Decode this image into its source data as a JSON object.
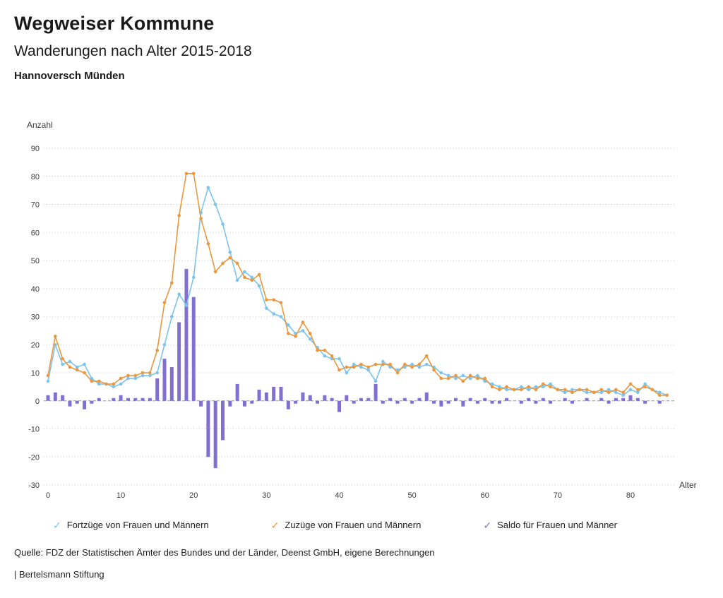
{
  "header": {
    "title": "Wegweiser Kommune",
    "subtitle": "Wanderungen nach Alter 2015-2018",
    "region": "Hannoversch Münden"
  },
  "chart_data": {
    "type": "line",
    "title": "Wanderungen nach Alter 2015-2018",
    "y_axis_label": "Anzahl",
    "x_axis_label": "Alter",
    "ylim": [
      -30,
      90
    ],
    "ytick_step": 10,
    "xlim": [
      0,
      86
    ],
    "xticks": [
      0,
      10,
      20,
      30,
      40,
      50,
      60,
      70,
      80
    ],
    "grid": true,
    "legend_position": "bottom",
    "x": [
      0,
      1,
      2,
      3,
      4,
      5,
      6,
      7,
      8,
      9,
      10,
      11,
      12,
      13,
      14,
      15,
      16,
      17,
      18,
      19,
      20,
      21,
      22,
      23,
      24,
      25,
      26,
      27,
      28,
      29,
      30,
      31,
      32,
      33,
      34,
      35,
      36,
      37,
      38,
      39,
      40,
      41,
      42,
      43,
      44,
      45,
      46,
      47,
      48,
      49,
      50,
      51,
      52,
      53,
      54,
      55,
      56,
      57,
      58,
      59,
      60,
      61,
      62,
      63,
      64,
      65,
      66,
      67,
      68,
      69,
      70,
      71,
      72,
      73,
      74,
      75,
      76,
      77,
      78,
      79,
      80,
      81,
      82,
      83,
      84,
      85
    ],
    "series": [
      {
        "name": "Fortzüge von Frauen und Männern",
        "type": "line",
        "color": "#7cc4ec",
        "values": [
          7,
          20,
          13,
          14,
          12,
          13,
          8,
          6,
          6,
          5,
          6,
          8,
          8,
          9,
          9,
          10,
          20,
          30,
          38,
          34,
          44,
          67,
          76,
          70,
          63,
          53,
          43,
          46,
          44,
          41,
          33,
          31,
          30,
          27,
          24,
          25,
          22,
          19,
          16,
          15,
          15,
          10,
          13,
          12,
          11,
          7,
          14,
          12,
          11,
          12,
          13,
          12,
          13,
          12,
          10,
          9,
          8,
          9,
          8,
          9,
          7,
          6,
          5,
          4,
          4,
          5,
          4,
          5,
          5,
          6,
          4,
          3,
          4,
          4,
          3,
          3,
          3,
          4,
          3,
          2,
          4,
          3,
          6,
          4,
          3,
          2
        ]
      },
      {
        "name": "Zuzüge von Frauen und Männern",
        "type": "line",
        "color": "#ea973e",
        "values": [
          9,
          23,
          15,
          12,
          11,
          10,
          7,
          7,
          6,
          6,
          8,
          9,
          9,
          10,
          10,
          18,
          35,
          42,
          66,
          81,
          81,
          65,
          56,
          46,
          49,
          51,
          49,
          44,
          43,
          45,
          36,
          36,
          35,
          24,
          23,
          28,
          24,
          18,
          18,
          16,
          11,
          12,
          12,
          13,
          12,
          13,
          13,
          13,
          10,
          13,
          12,
          13,
          16,
          11,
          8,
          8,
          9,
          7,
          9,
          8,
          8,
          5,
          4,
          5,
          4,
          4,
          5,
          4,
          6,
          5,
          4,
          4,
          3,
          4,
          4,
          3,
          4,
          3,
          4,
          3,
          6,
          4,
          5,
          4,
          2,
          2
        ]
      },
      {
        "name": "Saldo für Frauen und Männer",
        "type": "bar",
        "color": "#8170d0",
        "values": [
          2,
          3,
          2,
          -2,
          -1,
          -3,
          -1,
          1,
          0,
          1,
          2,
          1,
          1,
          1,
          1,
          8,
          15,
          12,
          28,
          47,
          37,
          -2,
          -20,
          -24,
          -14,
          -2,
          6,
          -2,
          -1,
          4,
          3,
          5,
          5,
          -3,
          -1,
          3,
          2,
          -1,
          2,
          1,
          -4,
          2,
          -1,
          1,
          1,
          6,
          -1,
          1,
          -1,
          1,
          -1,
          1,
          3,
          -1,
          -2,
          -1,
          1,
          -2,
          1,
          -1,
          1,
          -1,
          -1,
          1,
          0,
          -1,
          1,
          -1,
          1,
          -1,
          0,
          1,
          -1,
          0,
          1,
          0,
          1,
          -1,
          1,
          1,
          2,
          1,
          -1,
          0,
          -1,
          0
        ]
      }
    ]
  },
  "footer": {
    "source": "Quelle: FDZ der Statistischen Ämter des Bundes und der Länder, Deenst GmbH, eigene Berechnungen",
    "brand": "| Bertelsmann Stiftung"
  }
}
